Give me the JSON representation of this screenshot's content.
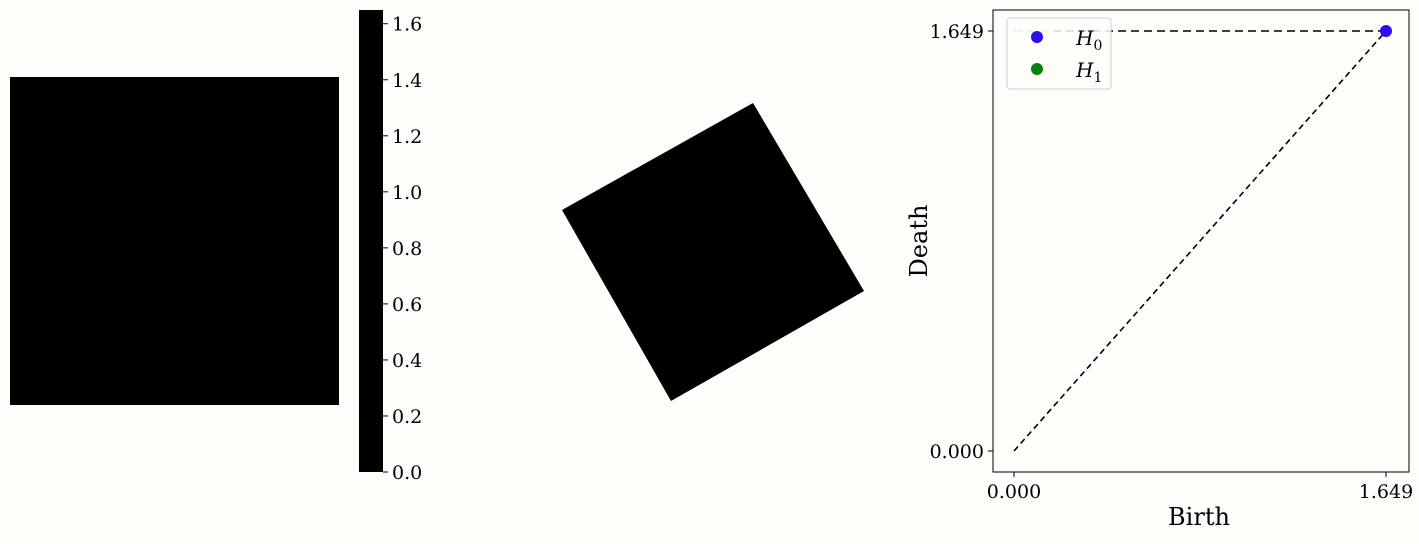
{
  "colors": {
    "background": "#fdfdf9",
    "fill": "#000000",
    "h0": "#2a0ef0",
    "h1": "#0a8010",
    "diagonal": "#000000",
    "infinity_line": "#bfbfbf"
  },
  "chart_data": [
    {
      "type": "heatmap",
      "description_panel": "image",
      "values_uniform": 0,
      "colorbar": {
        "range": [
          0.0,
          1.649
        ],
        "ticks": [
          0.0,
          0.2,
          0.4,
          0.6,
          0.8,
          1.0,
          1.2,
          1.4,
          1.6
        ],
        "tick_labels": [
          "0.0",
          "0.2",
          "0.4",
          "0.6",
          "0.8",
          "1.0",
          "1.2",
          "1.4",
          "1.6"
        ]
      }
    },
    {
      "type": "scatter",
      "description_panel": "rotated-shape",
      "rotation_deg": 30
    },
    {
      "type": "scatter",
      "xlabel": "Birth",
      "ylabel": "Death",
      "xlim": [
        0.0,
        1.649
      ],
      "ylim": [
        0.0,
        1.649
      ],
      "xticks": [
        0.0,
        1.649
      ],
      "xtick_labels": [
        "0.000",
        "1.649"
      ],
      "yticks": [
        0.0,
        1.649
      ],
      "ytick_labels": [
        "0.000",
        "1.649"
      ],
      "legend_placement": "top-left",
      "series": [
        {
          "name": "H0",
          "label_base": "H",
          "label_sub": "0",
          "points": [
            [
              1.649,
              1.649
            ]
          ]
        },
        {
          "name": "H1",
          "label_base": "H",
          "label_sub": "1",
          "points": []
        }
      ],
      "diagonal": [
        [
          0.0,
          0.0
        ],
        [
          1.649,
          1.649
        ]
      ],
      "infinity_death": 1.649
    }
  ]
}
